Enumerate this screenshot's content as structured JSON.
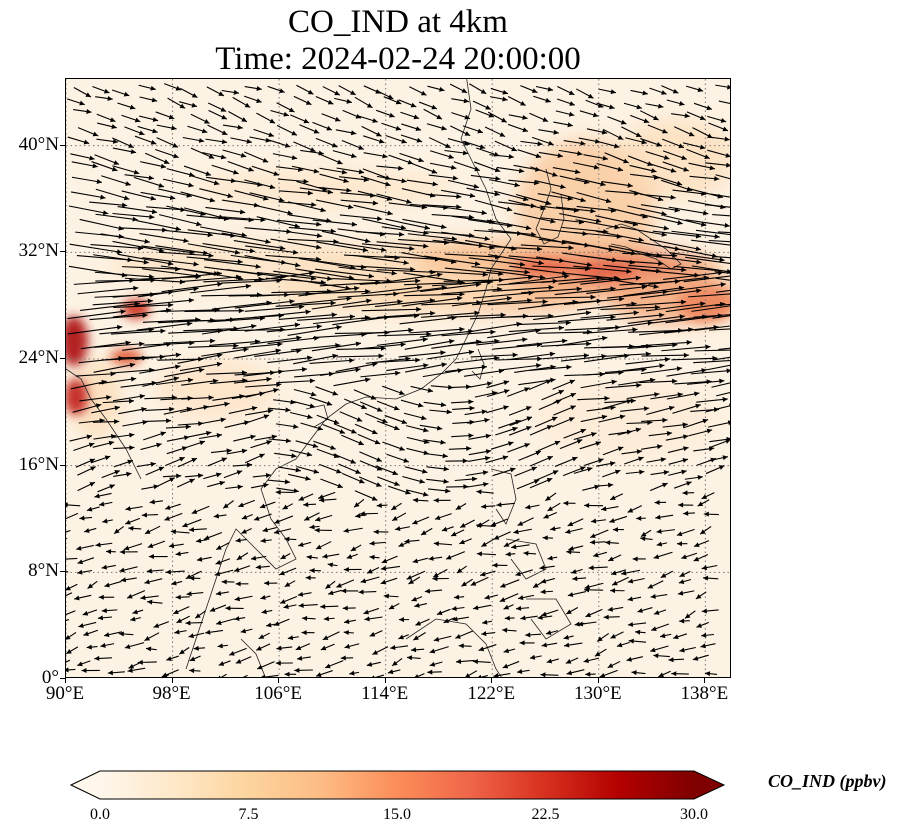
{
  "title": {
    "line1": "CO_IND at 4km",
    "line2": "Time: 2024-02-24 20:00:00"
  },
  "map": {
    "lon_range": [
      90,
      140
    ],
    "lat_range": [
      0,
      45
    ],
    "lat_labels": [
      "40°N",
      "32°N",
      "24°N",
      "16°N",
      "8°N",
      "0°"
    ],
    "lon_labels": [
      "90°E",
      "98°E",
      "106°E",
      "114°E",
      "122°E",
      "130°E",
      "138°E"
    ],
    "grid": "dotted",
    "field": "CO_IND",
    "vectors": "wind arrows"
  },
  "colorbar": {
    "label": "CO_IND (ppbv)",
    "ticks": [
      "0.0",
      "7.5",
      "15.0",
      "22.5",
      "30.0"
    ],
    "min": 0,
    "max": 30,
    "extend": "both",
    "colormap": "OrRd",
    "colors": [
      "#fff7ec",
      "#fee8c8",
      "#fdd49e",
      "#fdbb84",
      "#fc8d59",
      "#ef6548",
      "#d7301f",
      "#b30000",
      "#7f0000"
    ]
  }
}
